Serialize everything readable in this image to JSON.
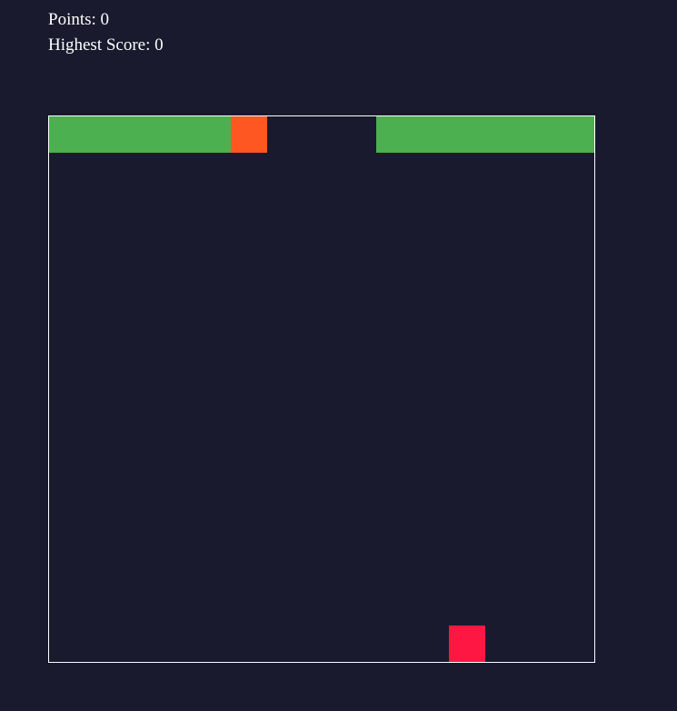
{
  "hud": {
    "points_label": "Points: 0",
    "highest_label": "Highest Score: 0"
  },
  "colors": {
    "background": "#191a2e",
    "border": "#ffffff",
    "wall": "#4caf50",
    "snake_head": "#ff5722",
    "food": "#ff1744"
  },
  "game": {
    "grid_columns": 15,
    "grid_rows": 15,
    "walls": [
      {
        "row": 0,
        "col_start": 0,
        "col_end": 4
      },
      {
        "row": 0,
        "col_start": 9,
        "col_end": 14
      }
    ],
    "snake_head": {
      "row": 0,
      "col": 5
    },
    "food": {
      "row": 14,
      "col": 11
    }
  }
}
